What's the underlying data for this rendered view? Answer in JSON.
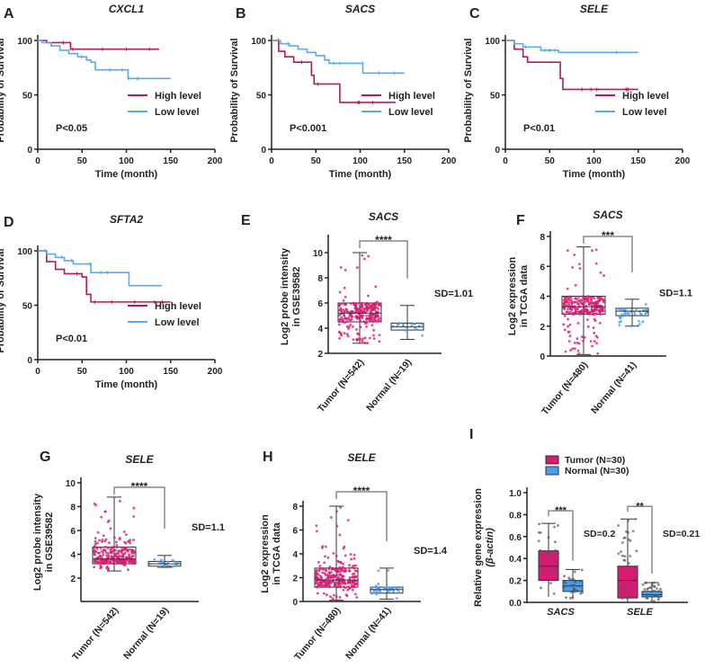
{
  "colors": {
    "high": "#b8195c",
    "low": "#5aa9f2",
    "tumor": "#d81b72",
    "normal": "#4a9ef0",
    "axis": "#222222",
    "bracket": "#888888"
  },
  "chart_data": [
    {
      "panel": "A",
      "type": "line",
      "title": "CXCL1",
      "xlabel": "Time (month)",
      "ylabel": "Probability of Survival",
      "xlim": [
        0,
        200
      ],
      "ylim": [
        0,
        100
      ],
      "xticks": [
        0,
        50,
        100,
        150,
        200
      ],
      "yticks": [
        0,
        50,
        100
      ],
      "pvalue": "P<0.05",
      "series": [
        {
          "name": "High level",
          "x": [
            0,
            10,
            37,
            137
          ],
          "y": [
            100,
            98,
            92,
            92
          ]
        },
        {
          "name": "Low level",
          "x": [
            0,
            5,
            15,
            25,
            35,
            45,
            55,
            60,
            65,
            100,
            102,
            150
          ],
          "y": [
            100,
            98,
            95,
            91,
            88,
            85,
            82,
            80,
            73,
            73,
            65,
            65
          ]
        }
      ]
    },
    {
      "panel": "B",
      "type": "line",
      "title": "SACS",
      "xlabel": "Time (month)",
      "ylabel": "Probability of Survival",
      "xlim": [
        0,
        200
      ],
      "ylim": [
        0,
        100
      ],
      "xticks": [
        0,
        50,
        100,
        150,
        200
      ],
      "yticks": [
        0,
        50,
        100
      ],
      "pvalue": "P<0.001",
      "series": [
        {
          "name": "High level",
          "x": [
            0,
            8,
            15,
            25,
            45,
            48,
            75,
            77,
            140
          ],
          "y": [
            100,
            90,
            85,
            80,
            68,
            60,
            60,
            43,
            43
          ]
        },
        {
          "name": "Low level",
          "x": [
            0,
            10,
            20,
            30,
            40,
            50,
            60,
            65,
            100,
            103,
            150
          ],
          "y": [
            100,
            97,
            95,
            92,
            89,
            86,
            82,
            79,
            79,
            70,
            70
          ]
        }
      ]
    },
    {
      "panel": "C",
      "type": "line",
      "title": "SELE",
      "xlabel": "Time (month)",
      "ylabel": "Probability of Survival",
      "xlim": [
        0,
        200
      ],
      "ylim": [
        0,
        100
      ],
      "xticks": [
        0,
        50,
        100,
        150,
        200
      ],
      "yticks": [
        0,
        50,
        100
      ],
      "pvalue": "P<0.01",
      "series": [
        {
          "name": "High level",
          "x": [
            0,
            10,
            20,
            25,
            50,
            62,
            65,
            150
          ],
          "y": [
            100,
            92,
            85,
            80,
            80,
            65,
            55,
            55
          ]
        },
        {
          "name": "Low level",
          "x": [
            0,
            10,
            20,
            40,
            60,
            150
          ],
          "y": [
            100,
            97,
            94,
            91,
            89,
            89
          ]
        }
      ]
    },
    {
      "panel": "D",
      "type": "line",
      "title": "SFTA2",
      "xlabel": "Time (month)",
      "ylabel": "Probability of Survival",
      "xlim": [
        0,
        200
      ],
      "ylim": [
        0,
        100
      ],
      "xticks": [
        0,
        50,
        100,
        150,
        200
      ],
      "yticks": [
        0,
        50,
        100
      ],
      "pvalue": "P<0.01",
      "series": [
        {
          "name": "High level",
          "x": [
            0,
            10,
            20,
            30,
            50,
            55,
            60,
            150
          ],
          "y": [
            100,
            90,
            83,
            79,
            76,
            60,
            53,
            53
          ]
        },
        {
          "name": "Low level",
          "x": [
            0,
            10,
            20,
            30,
            40,
            60,
            100,
            103,
            140
          ],
          "y": [
            100,
            97,
            94,
            91,
            88,
            80,
            80,
            68,
            68
          ]
        }
      ]
    },
    {
      "panel": "E",
      "type": "box",
      "title": "SACS",
      "ylabel": [
        "Log2 probe intensity",
        "in GSE39582"
      ],
      "ylim": [
        2,
        11
      ],
      "yticks": [
        2,
        4,
        6,
        8,
        10
      ],
      "significance": "****",
      "sd": "SD=1.01",
      "categories": [
        "Tumor (N=542)",
        "Normal (N=19)"
      ],
      "boxes": [
        {
          "min": 2.8,
          "q1": 4.5,
          "median": 5.2,
          "q3": 6.0,
          "max": 10,
          "n": 542
        },
        {
          "min": 3.1,
          "q1": 3.85,
          "median": 4.1,
          "q3": 4.4,
          "max": 5.8,
          "n": 19
        }
      ]
    },
    {
      "panel": "F",
      "type": "box",
      "title": "SACS",
      "ylabel": [
        "Log2 expression",
        "in TCGA data"
      ],
      "ylim": [
        0,
        8
      ],
      "yticks": [
        0,
        2,
        4,
        6,
        8
      ],
      "significance": "***",
      "sd": "SD=1.1",
      "categories": [
        "Tumor (N=480)",
        "Normal (N=41)"
      ],
      "boxes": [
        {
          "min": 0.1,
          "q1": 2.8,
          "median": 3.3,
          "q3": 4.0,
          "max": 7.3,
          "n": 480
        },
        {
          "min": 2.0,
          "q1": 2.7,
          "median": 3.0,
          "q3": 3.2,
          "max": 3.8,
          "n": 41
        }
      ]
    },
    {
      "panel": "G",
      "type": "box",
      "title": "SELE",
      "ylabel": [
        "Log2 probe intensity",
        "in GSE39582"
      ],
      "ylim": [
        2,
        10
      ],
      "yticks": [
        2,
        4,
        6,
        8,
        10
      ],
      "significance": "****",
      "sd": "SD=1.1",
      "categories": [
        "Tumor (N=542)",
        "Normal (N=19)"
      ],
      "boxes": [
        {
          "min": 2.6,
          "q1": 3.2,
          "median": 3.6,
          "q3": 4.6,
          "max": 8.8,
          "n": 542
        },
        {
          "min": 2.9,
          "q1": 3.0,
          "median": 3.2,
          "q3": 3.4,
          "max": 3.9,
          "n": 19
        }
      ]
    },
    {
      "panel": "H",
      "type": "box",
      "title": "SELE",
      "ylabel": [
        "Log2 expression",
        "in TCGA data"
      ],
      "ylim": [
        0,
        8
      ],
      "yticks": [
        0,
        2,
        4,
        6,
        8
      ],
      "significance": "****",
      "sd": "SD=1.4",
      "categories": [
        "Tumor (N=480)",
        "Normal (N=41)"
      ],
      "boxes": [
        {
          "min": 0.1,
          "q1": 1.2,
          "median": 1.8,
          "q3": 2.8,
          "max": 8.0,
          "n": 480
        },
        {
          "min": 0.2,
          "q1": 0.7,
          "median": 1.0,
          "q3": 1.2,
          "max": 2.8,
          "n": 41
        }
      ]
    },
    {
      "panel": "I",
      "type": "bar",
      "title": "",
      "ylabel": [
        "Relative gene expression",
        "(β-actin)"
      ],
      "ylim": [
        0,
        1
      ],
      "yticks": [
        0.0,
        0.2,
        0.4,
        0.6,
        0.8,
        1.0
      ],
      "legend": [
        "Tumor (N=30)",
        "Normal (N=30)"
      ],
      "groups": [
        {
          "name": "SACS",
          "significance": "***",
          "sd": "SD=0.2",
          "boxes": [
            {
              "min": 0.05,
              "q1": 0.2,
              "median": 0.33,
              "q3": 0.47,
              "max": 0.72,
              "n": 30
            },
            {
              "min": 0.03,
              "q1": 0.1,
              "median": 0.15,
              "q3": 0.2,
              "max": 0.3,
              "n": 30
            }
          ]
        },
        {
          "name": "SELE",
          "significance": "**",
          "sd": "SD=0.21",
          "boxes": [
            {
              "min": 0.0,
              "q1": 0.04,
              "median": 0.2,
              "q3": 0.33,
              "max": 0.76,
              "n": 30
            },
            {
              "min": 0.0,
              "q1": 0.05,
              "median": 0.07,
              "q3": 0.1,
              "max": 0.18,
              "n": 30
            }
          ]
        }
      ]
    }
  ]
}
